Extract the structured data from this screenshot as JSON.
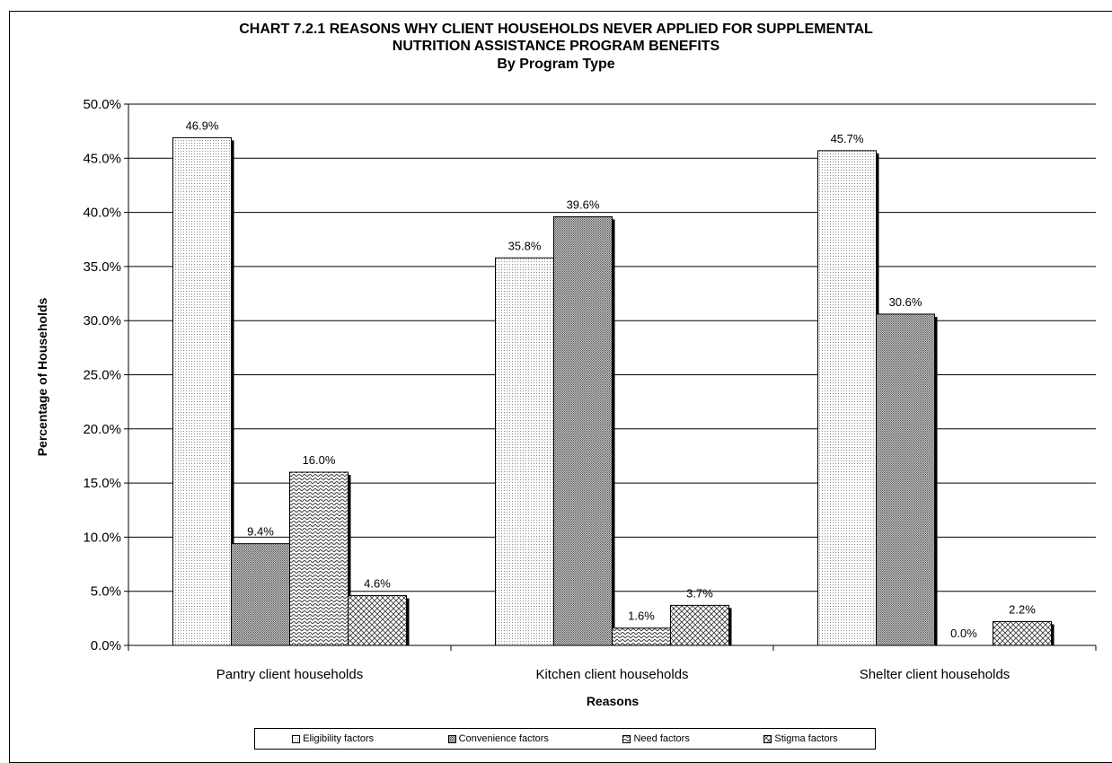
{
  "chart_data": {
    "type": "bar",
    "title": "CHART 7.2.1     REASONS WHY CLIENT HOUSEHOLDS NEVER APPLIED FOR SUPPLEMENTAL",
    "title_line2": "NUTRITION ASSISTANCE PROGRAM BENEFITS",
    "subtitle": "By Program Type",
    "xlabel": "Reasons",
    "ylabel": "Percentage of Households",
    "ylim": [
      0,
      50
    ],
    "y_ticks": [
      "0.0%",
      "5.0%",
      "10.0%",
      "15.0%",
      "20.0%",
      "25.0%",
      "30.0%",
      "35.0%",
      "40.0%",
      "45.0%",
      "50.0%"
    ],
    "categories": [
      "Pantry client households",
      "Kitchen client households",
      "Shelter client households"
    ],
    "series": [
      {
        "name": "Eligibility factors",
        "values": [
          46.9,
          35.8,
          45.7
        ],
        "labels": [
          "46.9%",
          "35.8%",
          "45.7%"
        ],
        "pattern": "dots-fine"
      },
      {
        "name": "Convenience factors",
        "values": [
          9.4,
          39.6,
          30.6
        ],
        "labels": [
          "9.4%",
          "39.6%",
          "30.6%"
        ],
        "pattern": "dots-dense"
      },
      {
        "name": "Need factors",
        "values": [
          16.0,
          1.6,
          0.0
        ],
        "labels": [
          "16.0%",
          "1.6%",
          "0.0%"
        ],
        "pattern": "zigzag"
      },
      {
        "name": "Stigma factors",
        "values": [
          4.6,
          3.7,
          2.2
        ],
        "labels": [
          "4.6%",
          "3.7%",
          "2.2%"
        ],
        "pattern": "crosshatch"
      }
    ],
    "grid": true,
    "legend_position": "bottom"
  }
}
